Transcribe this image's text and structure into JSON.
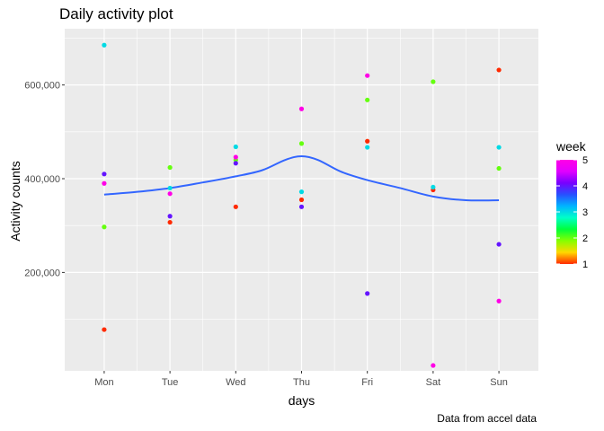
{
  "chart_data": {
    "type": "scatter",
    "title": "Daily activity plot",
    "caption": "Data from accel data",
    "xlabel": "days",
    "ylabel": "Activity counts",
    "categories": [
      "Mon",
      "Tue",
      "Wed",
      "Thu",
      "Fri",
      "Sat",
      "Sun"
    ],
    "ylim": [
      -10000,
      720000
    ],
    "y_ticks": [
      200000,
      400000,
      600000
    ],
    "y_tick_labels": [
      "200,000",
      "400,000",
      "600,000"
    ],
    "grid": true,
    "legend": {
      "title": "week",
      "position": "right",
      "type": "colorbar",
      "range": [
        1,
        5
      ],
      "ticks": [
        1,
        2,
        3,
        4,
        5
      ],
      "tick_labels": [
        "1",
        "2",
        "3",
        "4",
        "5"
      ],
      "colors": [
        "#ff2a00",
        "#ffd700",
        "#86ff00",
        "#00ff3c",
        "#00ffc8",
        "#00b4ff",
        "#2850ff",
        "#7800ff",
        "#e100ff",
        "#ff00e6"
      ]
    },
    "points": [
      {
        "day": "Mon",
        "week": 1,
        "value": 78000
      },
      {
        "day": "Mon",
        "week": 2,
        "value": 297000
      },
      {
        "day": "Mon",
        "week": 3,
        "value": 685000
      },
      {
        "day": "Mon",
        "week": 4,
        "value": 410000
      },
      {
        "day": "Mon",
        "week": 5,
        "value": 390000
      },
      {
        "day": "Tue",
        "week": 1,
        "value": 307000
      },
      {
        "day": "Tue",
        "week": 2,
        "value": 424000
      },
      {
        "day": "Tue",
        "week": 3,
        "value": 380000
      },
      {
        "day": "Tue",
        "week": 4,
        "value": 320000
      },
      {
        "day": "Tue",
        "week": 5,
        "value": 368000
      },
      {
        "day": "Wed",
        "week": 1,
        "value": 340000
      },
      {
        "day": "Wed",
        "week": 2,
        "value": 440000
      },
      {
        "day": "Wed",
        "week": 3,
        "value": 468000
      },
      {
        "day": "Wed",
        "week": 4,
        "value": 433000
      },
      {
        "day": "Wed",
        "week": 5,
        "value": 446000
      },
      {
        "day": "Thu",
        "week": 1,
        "value": 355000
      },
      {
        "day": "Thu",
        "week": 2,
        "value": 475000
      },
      {
        "day": "Thu",
        "week": 3,
        "value": 372000
      },
      {
        "day": "Thu",
        "week": 4,
        "value": 340000
      },
      {
        "day": "Thu",
        "week": 5,
        "value": 549000
      },
      {
        "day": "Fri",
        "week": 1,
        "value": 480000
      },
      {
        "day": "Fri",
        "week": 2,
        "value": 568000
      },
      {
        "day": "Fri",
        "week": 3,
        "value": 467000
      },
      {
        "day": "Fri",
        "week": 4,
        "value": 155000
      },
      {
        "day": "Fri",
        "week": 5,
        "value": 620000
      },
      {
        "day": "Sat",
        "week": 1,
        "value": 376000
      },
      {
        "day": "Sat",
        "week": 2,
        "value": 607000
      },
      {
        "day": "Sat",
        "week": 3,
        "value": 382000
      },
      {
        "day": "Sat",
        "week": 5,
        "value": 1440
      },
      {
        "day": "Sun",
        "week": 1,
        "value": 632000
      },
      {
        "day": "Sun",
        "week": 2,
        "value": 422000
      },
      {
        "day": "Sun",
        "week": 3,
        "value": 467000
      },
      {
        "day": "Sun",
        "week": 4,
        "value": 260000
      },
      {
        "day": "Sun",
        "week": 5,
        "value": 139000
      }
    ],
    "smooth_line": {
      "color": "#3366ff",
      "x": [
        1,
        1.5,
        2,
        2.5,
        3,
        3.4,
        3.75,
        4,
        4.25,
        4.6,
        5,
        5.5,
        6,
        6.5,
        7
      ],
      "y": [
        366000,
        372000,
        380000,
        392000,
        405000,
        418000,
        440000,
        448000,
        440000,
        415000,
        397000,
        380000,
        362000,
        354000,
        354000
      ]
    }
  }
}
